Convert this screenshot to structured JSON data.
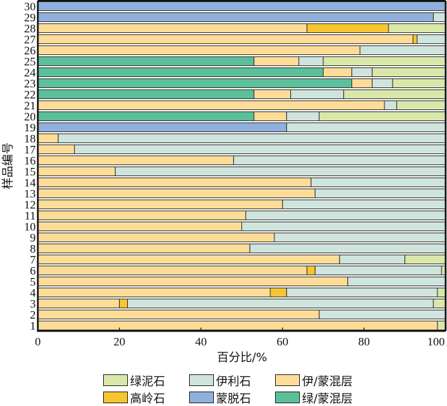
{
  "chart_data": {
    "type": "bar",
    "orientation": "horizontal",
    "stacked": true,
    "title": "",
    "xlabel": "百分比/%",
    "ylabel": "样品编号",
    "xlim": [
      0,
      100
    ],
    "xticks": [
      "0",
      "20",
      "40",
      "60",
      "80",
      "100"
    ],
    "categories": [
      "1",
      "2",
      "3",
      "4",
      "5",
      "6",
      "7",
      "8",
      "9",
      "10",
      "11",
      "12",
      "13",
      "14",
      "15",
      "16",
      "17",
      "18",
      "19",
      "20",
      "21",
      "22",
      "23",
      "24",
      "25",
      "26",
      "27",
      "28",
      "29",
      "30"
    ],
    "legend_position": "bottom",
    "series": [
      {
        "name": "绿/蒙混层",
        "color": "#5bbf9a",
        "values": [
          0,
          0,
          0,
          0,
          0,
          0,
          0,
          0,
          0,
          0,
          0,
          0,
          0,
          0,
          0,
          0,
          0,
          0,
          0,
          53,
          0,
          53,
          77,
          70,
          53,
          0,
          0,
          0,
          0,
          0
        ]
      },
      {
        "name": "蒙脱石",
        "color": "#8fb0dc",
        "values": [
          0,
          0,
          0,
          0,
          0,
          0,
          0,
          0,
          0,
          0,
          0,
          0,
          0,
          0,
          0,
          0,
          0,
          0,
          61,
          0,
          0,
          0,
          0,
          0,
          0,
          0,
          0,
          0,
          97,
          100
        ]
      },
      {
        "name": "伊/蒙混层",
        "color": "#fddc97",
        "values": [
          98,
          69,
          20,
          57,
          76,
          66,
          74,
          52,
          58,
          50,
          51,
          60,
          68,
          67,
          19,
          48,
          9,
          5,
          0,
          8,
          85,
          9,
          5,
          7,
          11,
          79,
          92,
          66,
          0,
          0
        ]
      },
      {
        "name": "高岭石",
        "color": "#f6c530",
        "values": [
          0,
          0,
          2,
          4,
          0,
          2,
          0,
          0,
          0,
          0,
          0,
          0,
          0,
          0,
          0,
          0,
          0,
          0,
          0,
          0,
          0,
          0,
          0,
          0,
          0,
          0,
          1,
          20,
          0,
          0
        ]
      },
      {
        "name": "伊利石",
        "color": "#cfe4dc",
        "values": [
          0,
          31,
          75,
          37,
          24,
          31,
          16,
          48,
          42,
          50,
          49,
          40,
          32,
          33,
          81,
          52,
          91,
          95,
          39,
          8,
          3,
          13,
          5,
          5,
          6,
          21,
          7,
          0,
          3,
          0
        ]
      },
      {
        "name": "绿泥石",
        "color": "#d9e8a8",
        "values": [
          2,
          0,
          3,
          2,
          0,
          1,
          10,
          0,
          0,
          0,
          0,
          0,
          0,
          0,
          0,
          0,
          0,
          0,
          0,
          31,
          12,
          25,
          13,
          18,
          30,
          0,
          0,
          14,
          0,
          0
        ]
      }
    ],
    "legend_order": [
      "绿泥石",
      "伊利石",
      "伊/蒙混层",
      "高岭石",
      "蒙脱石",
      "绿/蒙混层"
    ]
  }
}
